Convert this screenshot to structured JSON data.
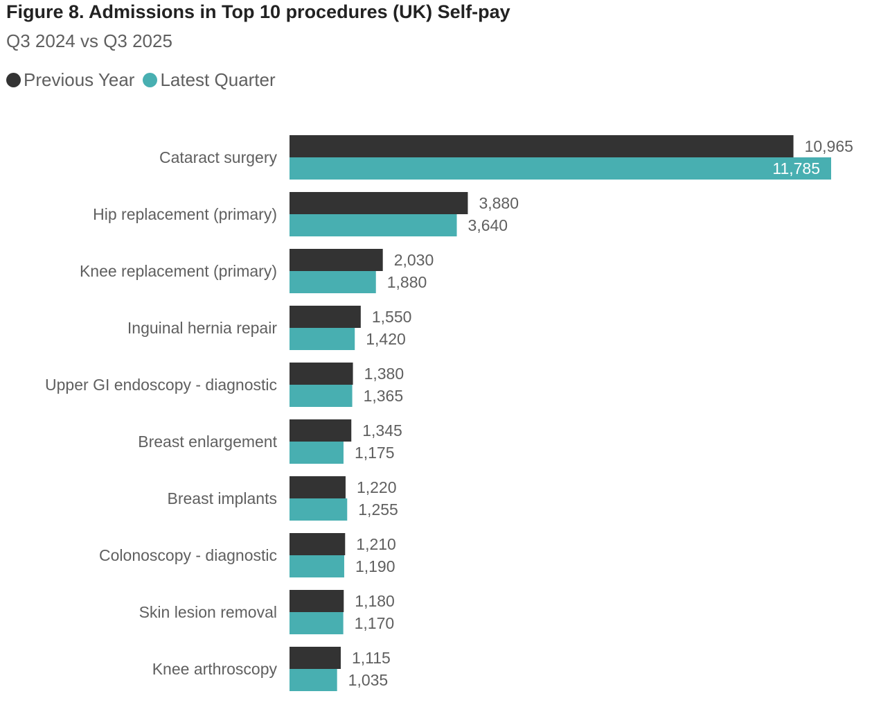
{
  "chart_data": {
    "type": "bar",
    "orientation": "horizontal",
    "title": "Figure 8. Admissions in Top 10 procedures (UK) Self-pay",
    "subtitle": "Q3 2024 vs Q3 2025",
    "legend_position": "top-left",
    "grid": false,
    "categories": [
      "Cataract surgery",
      "Hip replacement (primary)",
      "Knee replacement (primary)",
      "Inguinal hernia repair",
      "Upper GI endoscopy - diagnostic",
      "Breast enlargement",
      "Breast implants",
      "Colonoscopy - diagnostic",
      "Skin lesion removal",
      "Knee arthroscopy"
    ],
    "series": [
      {
        "name": "Previous Year",
        "color": "#333333",
        "values": [
          10965,
          3880,
          2030,
          1550,
          1380,
          1345,
          1220,
          1210,
          1180,
          1115
        ]
      },
      {
        "name": "Latest Quarter",
        "color": "#48afb1",
        "values": [
          11785,
          3640,
          1880,
          1420,
          1365,
          1175,
          1255,
          1190,
          1170,
          1035
        ]
      }
    ],
    "data_labels": [
      [
        "10,965",
        "3,880",
        "2,030",
        "1,550",
        "1,380",
        "1,345",
        "1,220",
        "1,210",
        "1,180",
        "1,115"
      ],
      [
        "11,785",
        "3,640",
        "1,880",
        "1,420",
        "1,365",
        "1,175",
        "1,255",
        "1,190",
        "1,170",
        "1,035"
      ]
    ]
  }
}
